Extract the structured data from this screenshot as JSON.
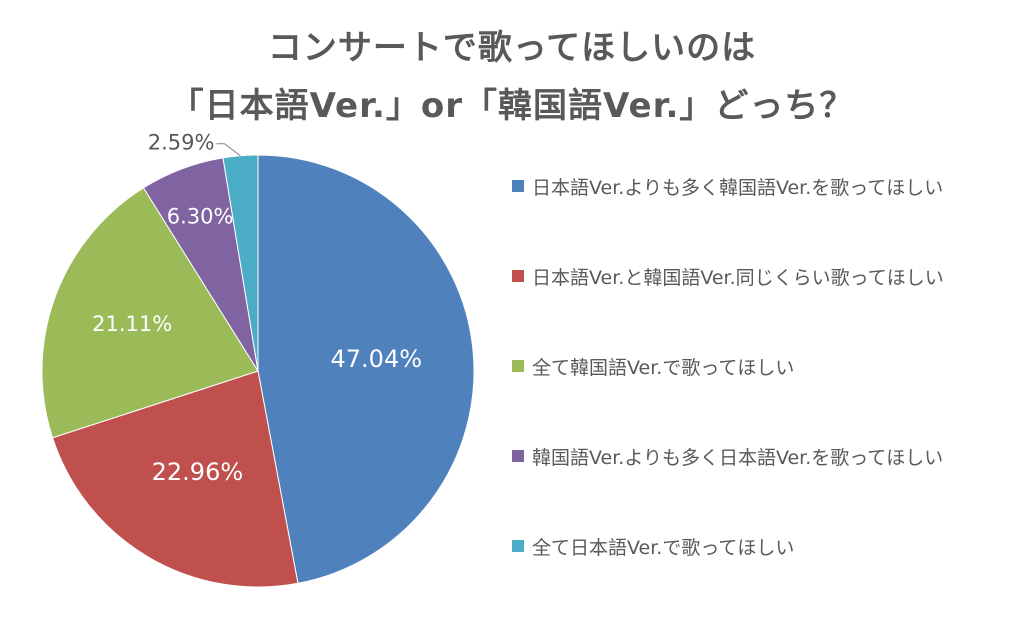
{
  "chart_data": {
    "type": "pie",
    "title_lines": [
      "コンサートで歌ってほしいのは",
      "「日本語Ver.」or「韓国語Ver.」どっち？"
    ],
    "slices": [
      {
        "label": "日本語Ver.よりも多く韓国語Ver.を歌ってほしい",
        "value": 47.04,
        "display": "47.04%",
        "color": "#4F81BD"
      },
      {
        "label": "日本語Ver.と韓国語Ver.同じくらい歌ってほしい",
        "value": 22.96,
        "display": "22.96%",
        "color": "#C0504D"
      },
      {
        "label": "全て韓国語Ver.で歌ってほしい",
        "value": 21.11,
        "display": "21.11%",
        "color": "#9BBB59"
      },
      {
        "label": "韓国語Ver.よりも多く日本語Ver.を歌ってほしい",
        "value": 6.3,
        "display": "6.30%",
        "color": "#8064A2"
      },
      {
        "label": "全て日本語Ver.で歌ってほしい",
        "value": 2.59,
        "display": "2.59%",
        "color": "#4BACC6"
      }
    ],
    "start_angle_deg": 0,
    "direction": "clockwise",
    "legend_position": "right"
  }
}
